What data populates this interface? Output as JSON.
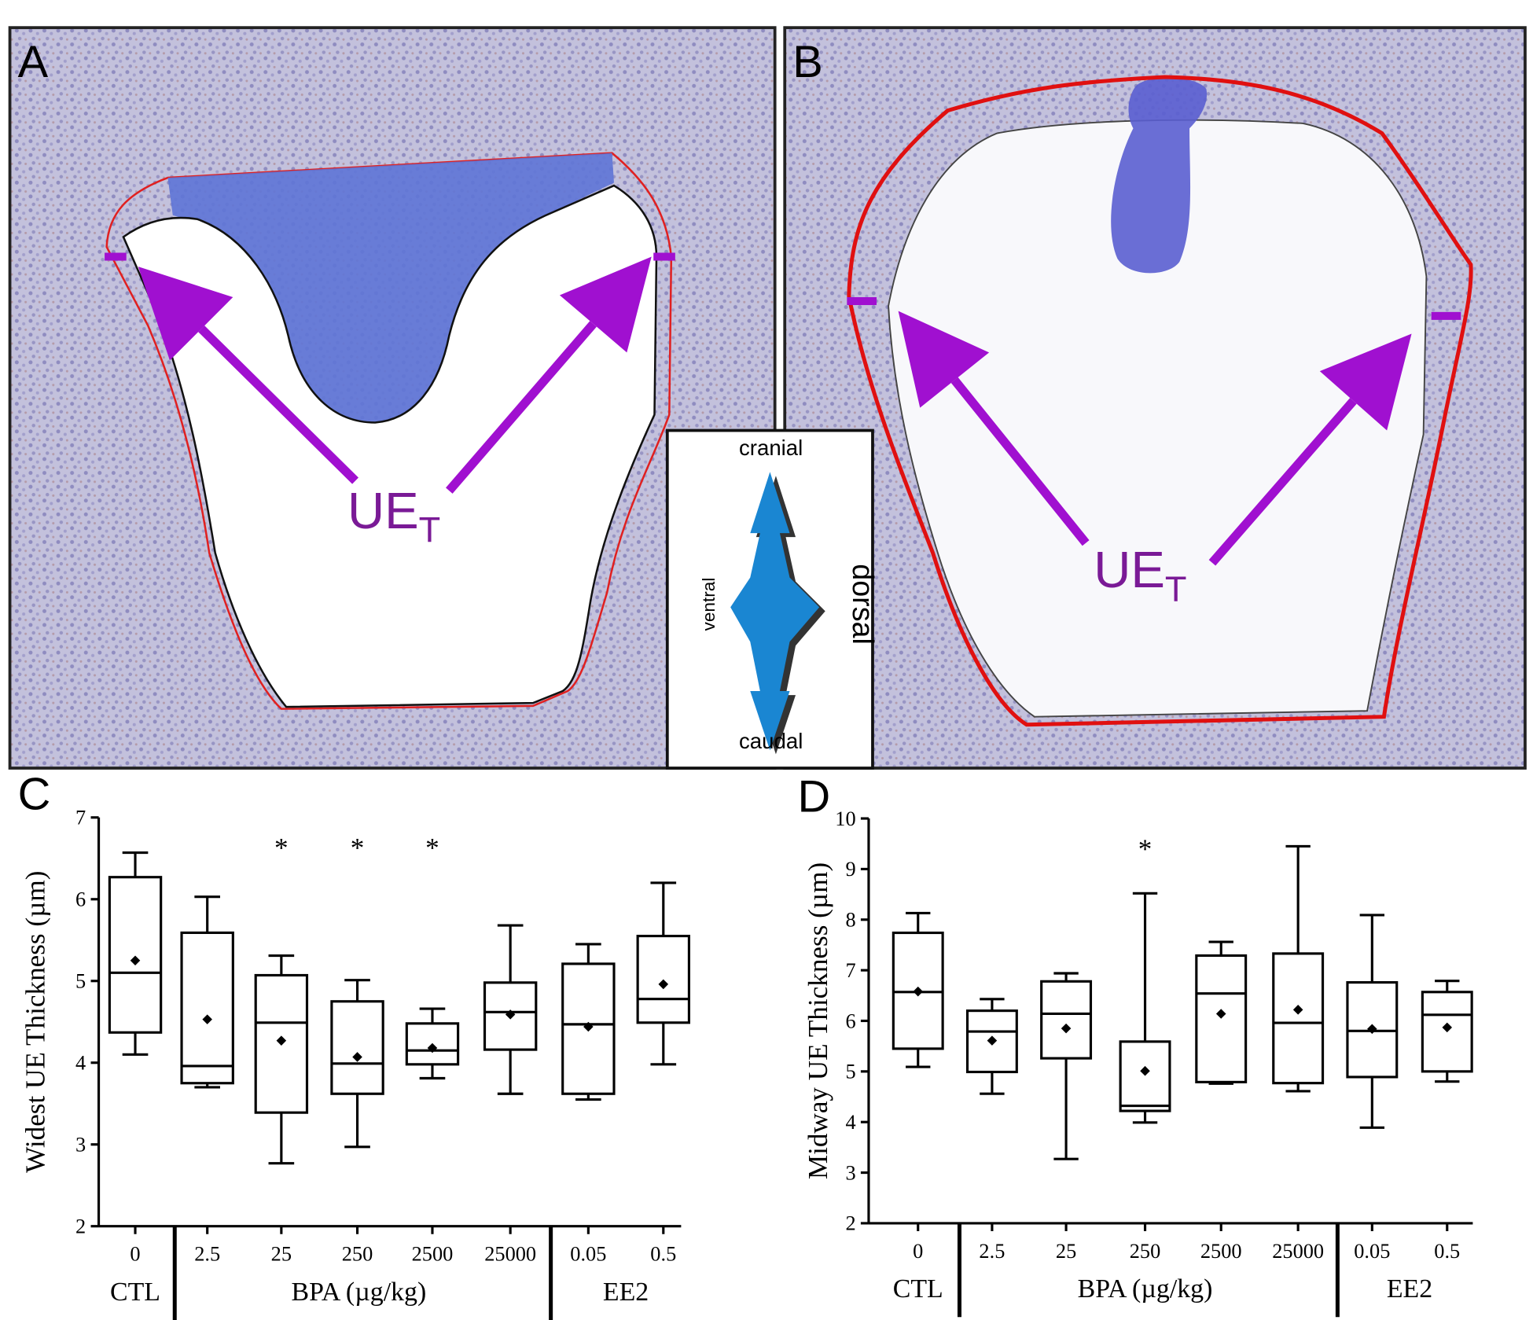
{
  "image_panels": [
    {
      "label": "A",
      "annotation": "UE",
      "annotation_subscript": "T"
    },
    {
      "label": "B",
      "annotation": "UE",
      "annotation_subscript": "T"
    }
  ],
  "orientation": {
    "top": "cranial",
    "bottom": "caudal",
    "left": "ventral",
    "right": "dorsal"
  },
  "chart_data": [
    {
      "type": "box",
      "panel_label": "C",
      "ylabel": "Widest UE Thickness (µm)",
      "categories": [
        "0",
        "2.5",
        "25",
        "250",
        "2500",
        "25000",
        "0.05",
        "0.5"
      ],
      "group_labels": [
        "CTL",
        "BPA (µg/kg)",
        "EE2"
      ],
      "markers": [
        null,
        null,
        "*",
        "*",
        "*",
        null,
        null,
        null
      ],
      "boxes": [
        {
          "min": 4.1,
          "q1": 4.37,
          "median": 5.1,
          "q3": 6.27,
          "max": 6.57,
          "mean": 5.25
        },
        {
          "min": 3.7,
          "q1": 3.75,
          "median": 3.96,
          "q3": 5.59,
          "max": 6.03,
          "mean": 4.53
        },
        {
          "min": 2.77,
          "q1": 3.39,
          "median": 4.49,
          "q3": 5.07,
          "max": 5.31,
          "mean": 4.27
        },
        {
          "min": 2.97,
          "q1": 3.62,
          "median": 3.99,
          "q3": 4.75,
          "max": 5.01,
          "mean": 4.07
        },
        {
          "min": 3.81,
          "q1": 3.98,
          "median": 4.15,
          "q3": 4.48,
          "max": 4.66,
          "mean": 4.18
        },
        {
          "min": 3.62,
          "q1": 4.16,
          "median": 4.62,
          "q3": 4.98,
          "max": 5.68,
          "mean": 4.59
        },
        {
          "min": 3.55,
          "q1": 3.62,
          "median": 4.47,
          "q3": 5.21,
          "max": 5.45,
          "mean": 4.44
        },
        {
          "min": 3.98,
          "q1": 4.49,
          "median": 4.78,
          "q3": 5.55,
          "max": 6.2,
          "mean": 4.96
        }
      ],
      "ylim": [
        2,
        7
      ],
      "yticks": [
        2,
        3,
        4,
        5,
        6,
        7
      ]
    },
    {
      "type": "box",
      "panel_label": "D",
      "ylabel": "Midway UE Thickness (µm)",
      "categories": [
        "0",
        "2.5",
        "25",
        "250",
        "2500",
        "25000",
        "0.05",
        "0.5"
      ],
      "group_labels": [
        "CTL",
        "BPA (µg/kg)",
        "EE2"
      ],
      "markers": [
        null,
        null,
        null,
        "*",
        null,
        null,
        null,
        null
      ],
      "boxes": [
        {
          "min": 5.09,
          "q1": 5.45,
          "median": 6.57,
          "q3": 7.74,
          "max": 8.13,
          "mean": 6.58
        },
        {
          "min": 4.56,
          "q1": 4.99,
          "median": 5.79,
          "q3": 6.2,
          "max": 6.43,
          "mean": 5.61
        },
        {
          "min": 3.27,
          "q1": 5.26,
          "median": 6.14,
          "q3": 6.78,
          "max": 6.94,
          "mean": 5.85
        },
        {
          "min": 3.99,
          "q1": 4.22,
          "median": 4.32,
          "q3": 5.59,
          "max": 8.52,
          "mean": 5.01
        },
        {
          "min": 4.76,
          "q1": 4.79,
          "median": 6.54,
          "q3": 7.29,
          "max": 7.56,
          "mean": 6.14
        },
        {
          "min": 4.61,
          "q1": 4.77,
          "median": 5.96,
          "q3": 7.33,
          "max": 9.45,
          "mean": 6.22
        },
        {
          "min": 3.89,
          "q1": 4.89,
          "median": 5.8,
          "q3": 6.76,
          "max": 8.09,
          "mean": 5.84
        },
        {
          "min": 4.8,
          "q1": 5.0,
          "median": 6.12,
          "q3": 6.57,
          "max": 6.79,
          "mean": 5.87
        }
      ],
      "ylim": [
        2,
        10
      ],
      "yticks": [
        2,
        3,
        4,
        5,
        6,
        7,
        8,
        9,
        10
      ]
    }
  ]
}
